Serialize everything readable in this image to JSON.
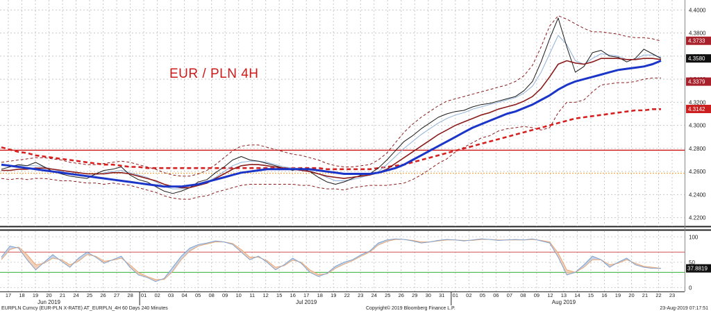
{
  "chart_data": {
    "type": "line",
    "title": "EUR / PLN 4H",
    "price_panel": {
      "ylim": [
        4.215,
        4.405
      ],
      "y_ticks": [
        "4.4000",
        "4.3800",
        "4.3600",
        "4.3400",
        "4.3200",
        "4.3000",
        "4.2800",
        "4.2600",
        "4.2400",
        "4.2200"
      ],
      "horizontal_levels": [
        {
          "value": 4.2785,
          "color": "#cc1111"
        },
        {
          "value": 4.2585,
          "color": "#e6a020"
        }
      ],
      "price_tags": [
        {
          "label": "4.3733",
          "value": 4.3733,
          "bg": "#a8202a"
        },
        {
          "label": "4.3580",
          "value": 4.358,
          "bg": "#111111"
        },
        {
          "label": "4.3379",
          "value": 4.3379,
          "bg": "#a8202a"
        },
        {
          "label": "4.3142",
          "value": 4.3142,
          "bg": "#cc1f1f"
        }
      ],
      "series": [
        {
          "name": "price",
          "color": "#1a1a1a",
          "values": [
            4.262,
            4.264,
            4.266,
            4.265,
            4.268,
            4.264,
            4.26,
            4.258,
            4.256,
            4.255,
            4.254,
            4.258,
            4.261,
            4.262,
            4.264,
            4.257,
            4.253,
            4.251,
            4.247,
            4.243,
            4.241,
            4.243,
            4.246,
            4.251,
            4.253,
            4.259,
            4.264,
            4.27,
            4.273,
            4.27,
            4.269,
            4.267,
            4.265,
            4.263,
            4.261,
            4.263,
            4.26,
            4.255,
            4.251,
            4.249,
            4.251,
            4.254,
            4.257,
            4.258,
            4.263,
            4.27,
            4.278,
            4.286,
            4.291,
            4.297,
            4.302,
            4.307,
            4.31,
            4.312,
            4.313,
            4.316,
            4.318,
            4.319,
            4.321,
            4.323,
            4.325,
            4.33,
            4.338,
            4.355,
            4.375,
            4.393,
            4.368,
            4.346,
            4.351,
            4.363,
            4.365,
            4.36,
            4.359,
            4.355,
            4.358,
            4.366,
            4.362,
            4.358
          ]
        },
        {
          "name": "fast-ma",
          "color": "#8fb0d8",
          "values": [
            4.265,
            4.265,
            4.265,
            4.265,
            4.265,
            4.264,
            4.262,
            4.26,
            4.258,
            4.257,
            4.256,
            4.257,
            4.259,
            4.26,
            4.261,
            4.259,
            4.257,
            4.255,
            4.251,
            4.247,
            4.245,
            4.245,
            4.246,
            4.249,
            4.251,
            4.255,
            4.26,
            4.265,
            4.268,
            4.269,
            4.269,
            4.268,
            4.266,
            4.264,
            4.263,
            4.263,
            4.261,
            4.258,
            4.255,
            4.252,
            4.252,
            4.253,
            4.255,
            4.257,
            4.26,
            4.266,
            4.273,
            4.28,
            4.286,
            4.292,
            4.297,
            4.302,
            4.306,
            4.309,
            4.311,
            4.314,
            4.316,
            4.318,
            4.32,
            4.322,
            4.324,
            4.328,
            4.334,
            4.346,
            4.362,
            4.378,
            4.37,
            4.356,
            4.353,
            4.358,
            4.362,
            4.361,
            4.36,
            4.357,
            4.357,
            4.361,
            4.361,
            4.359
          ]
        },
        {
          "name": "mid-ma",
          "color": "#8b1a1a",
          "values": [
            4.261,
            4.261,
            4.262,
            4.262,
            4.263,
            4.263,
            4.262,
            4.261,
            4.26,
            4.259,
            4.258,
            4.258,
            4.258,
            4.259,
            4.259,
            4.258,
            4.256,
            4.254,
            4.252,
            4.249,
            4.247,
            4.246,
            4.246,
            4.248,
            4.25,
            4.254,
            4.258,
            4.262,
            4.265,
            4.266,
            4.266,
            4.265,
            4.264,
            4.263,
            4.262,
            4.261,
            4.26,
            4.258,
            4.256,
            4.255,
            4.254,
            4.255,
            4.256,
            4.257,
            4.259,
            4.262,
            4.267,
            4.272,
            4.277,
            4.282,
            4.287,
            4.292,
            4.296,
            4.3,
            4.303,
            4.306,
            4.309,
            4.311,
            4.314,
            4.316,
            4.318,
            4.321,
            4.325,
            4.332,
            4.342,
            4.353,
            4.356,
            4.354,
            4.353,
            4.355,
            4.358,
            4.358,
            4.358,
            4.357,
            4.357,
            4.358,
            4.358,
            4.357
          ]
        },
        {
          "name": "slow-ma",
          "color": "#1a35c8",
          "values": [
            4.266,
            4.265,
            4.264,
            4.263,
            4.262,
            4.261,
            4.26,
            4.259,
            4.258,
            4.257,
            4.256,
            4.255,
            4.254,
            4.253,
            4.252,
            4.251,
            4.25,
            4.249,
            4.248,
            4.247,
            4.247,
            4.247,
            4.248,
            4.249,
            4.251,
            4.253,
            4.255,
            4.257,
            4.259,
            4.26,
            4.261,
            4.262,
            4.262,
            4.262,
            4.262,
            4.262,
            4.262,
            4.261,
            4.26,
            4.259,
            4.258,
            4.258,
            4.258,
            4.258,
            4.259,
            4.261,
            4.263,
            4.266,
            4.27,
            4.274,
            4.278,
            4.282,
            4.286,
            4.29,
            4.294,
            4.298,
            4.301,
            4.304,
            4.307,
            4.31,
            4.312,
            4.315,
            4.318,
            4.322,
            4.326,
            4.331,
            4.335,
            4.338,
            4.34,
            4.342,
            4.344,
            4.346,
            4.348,
            4.349,
            4.35,
            4.351,
            4.353,
            4.356
          ]
        },
        {
          "name": "long-ma",
          "color": "#d62020",
          "values": [
            4.281,
            4.279,
            4.277,
            4.276,
            4.274,
            4.273,
            4.272,
            4.271,
            4.27,
            4.269,
            4.268,
            4.267,
            4.266,
            4.266,
            4.265,
            4.264,
            4.264,
            4.263,
            4.263,
            4.263,
            4.263,
            4.263,
            4.263,
            4.263,
            4.263,
            4.263,
            4.263,
            4.263,
            4.263,
            4.263,
            4.263,
            4.263,
            4.263,
            4.263,
            4.263,
            4.263,
            4.263,
            4.263,
            4.262,
            4.262,
            4.262,
            4.262,
            4.262,
            4.262,
            4.263,
            4.264,
            4.265,
            4.266,
            4.268,
            4.27,
            4.272,
            4.274,
            4.276,
            4.278,
            4.28,
            4.282,
            4.284,
            4.286,
            4.288,
            4.29,
            4.292,
            4.294,
            4.296,
            4.298,
            4.3,
            4.302,
            4.304,
            4.306,
            4.307,
            4.308,
            4.309,
            4.31,
            4.311,
            4.312,
            4.313,
            4.313,
            4.314,
            4.314
          ]
        },
        {
          "name": "upper-band",
          "color": "#8b1a1a",
          "values": [
            4.268,
            4.269,
            4.27,
            4.271,
            4.272,
            4.272,
            4.271,
            4.27,
            4.268,
            4.267,
            4.266,
            4.266,
            4.267,
            4.268,
            4.269,
            4.268,
            4.266,
            4.264,
            4.262,
            4.259,
            4.257,
            4.256,
            4.256,
            4.258,
            4.261,
            4.266,
            4.272,
            4.278,
            4.282,
            4.283,
            4.283,
            4.281,
            4.279,
            4.277,
            4.275,
            4.274,
            4.272,
            4.27,
            4.267,
            4.265,
            4.264,
            4.264,
            4.265,
            4.266,
            4.27,
            4.276,
            4.285,
            4.294,
            4.301,
            4.307,
            4.312,
            4.317,
            4.321,
            4.323,
            4.325,
            4.327,
            4.329,
            4.331,
            4.333,
            4.335,
            4.338,
            4.343,
            4.352,
            4.368,
            4.386,
            4.395,
            4.392,
            4.388,
            4.384,
            4.381,
            4.381,
            4.38,
            4.379,
            4.377,
            4.376,
            4.376,
            4.375,
            4.373
          ]
        },
        {
          "name": "lower-band",
          "color": "#8b1a1a",
          "values": [
            4.254,
            4.253,
            4.254,
            4.253,
            4.254,
            4.254,
            4.253,
            4.252,
            4.252,
            4.251,
            4.25,
            4.25,
            4.249,
            4.25,
            4.249,
            4.248,
            4.246,
            4.244,
            4.242,
            4.239,
            4.237,
            4.236,
            4.236,
            4.238,
            4.239,
            4.242,
            4.244,
            4.246,
            4.248,
            4.249,
            4.249,
            4.249,
            4.249,
            4.249,
            4.249,
            4.248,
            4.248,
            4.246,
            4.245,
            4.245,
            4.244,
            4.246,
            4.247,
            4.248,
            4.248,
            4.248,
            4.249,
            4.25,
            4.253,
            4.257,
            4.262,
            4.267,
            4.271,
            4.277,
            4.281,
            4.285,
            4.289,
            4.291,
            4.295,
            4.297,
            4.298,
            4.299,
            4.298,
            4.296,
            4.298,
            4.311,
            4.32,
            4.32,
            4.322,
            4.329,
            4.335,
            4.336,
            4.337,
            4.337,
            4.338,
            4.34,
            4.341,
            4.341
          ]
        }
      ]
    },
    "oscillator_panel": {
      "ylim": [
        -5,
        110
      ],
      "y_ticks": [
        "100",
        "50",
        "0"
      ],
      "levels": [
        {
          "value": 70,
          "color": "#d05050"
        },
        {
          "value": 30,
          "color": "#30b030"
        }
      ],
      "value_tag": {
        "label": "37.8819",
        "value": 37.88,
        "bg": "#111111"
      },
      "series": [
        {
          "name": "k",
          "color": "#7fa0cc",
          "values": [
            60,
            82,
            78,
            55,
            35,
            50,
            65,
            52,
            40,
            58,
            70,
            60,
            48,
            55,
            62,
            40,
            25,
            20,
            12,
            18,
            40,
            62,
            78,
            85,
            88,
            92,
            90,
            85,
            70,
            55,
            62,
            50,
            35,
            45,
            58,
            48,
            30,
            22,
            28,
            42,
            50,
            55,
            65,
            72,
            88,
            94,
            96,
            95,
            92,
            88,
            90,
            93,
            95,
            94,
            92,
            94,
            96,
            95,
            93,
            94,
            95,
            94,
            96,
            92,
            88,
            60,
            25,
            30,
            45,
            62,
            55,
            40,
            50,
            58,
            45,
            40,
            38,
            37.9
          ]
        },
        {
          "name": "d",
          "color": "#e8a878",
          "values": [
            55,
            75,
            80,
            65,
            45,
            48,
            58,
            55,
            45,
            52,
            65,
            62,
            52,
            54,
            58,
            45,
            30,
            22,
            16,
            16,
            32,
            55,
            72,
            82,
            86,
            90,
            90,
            87,
            75,
            60,
            60,
            53,
            40,
            43,
            54,
            50,
            35,
            26,
            27,
            38,
            46,
            53,
            62,
            70,
            84,
            91,
            95,
            95,
            93,
            90,
            90,
            92,
            94,
            94,
            93,
            93,
            95,
            95,
            94,
            94,
            94,
            94,
            95,
            93,
            90,
            68,
            35,
            30,
            40,
            55,
            55,
            45,
            48,
            55,
            48,
            42,
            40,
            38
          ]
        }
      ]
    },
    "x_axis": {
      "day_labels": [
        "17",
        "18",
        "19",
        "20",
        "21",
        "24",
        "25",
        "26",
        "27",
        "28",
        "01",
        "02",
        "03",
        "04",
        "05",
        "08",
        "09",
        "10",
        "11",
        "12",
        "15",
        "16",
        "17",
        "18",
        "19",
        "22",
        "23",
        "24",
        "25",
        "26",
        "29",
        "30",
        "31",
        "01",
        "02",
        "05",
        "06",
        "07",
        "08",
        "09",
        "12",
        "13",
        "14",
        "15",
        "16",
        "19",
        "20",
        "21",
        "22",
        "23"
      ],
      "month_labels": [
        "Jun 2019",
        "Jul 2019",
        "Aug 2019"
      ]
    }
  },
  "footer": {
    "left": "EURPLN Curncy (EUR-PLN X-RATE) AT_EURPLN_4H 60 Days 240 Minutes",
    "center": "Copyright© 2019 Bloomberg Finance L.P.",
    "right": "23-Aug-2019 07:17:51"
  }
}
